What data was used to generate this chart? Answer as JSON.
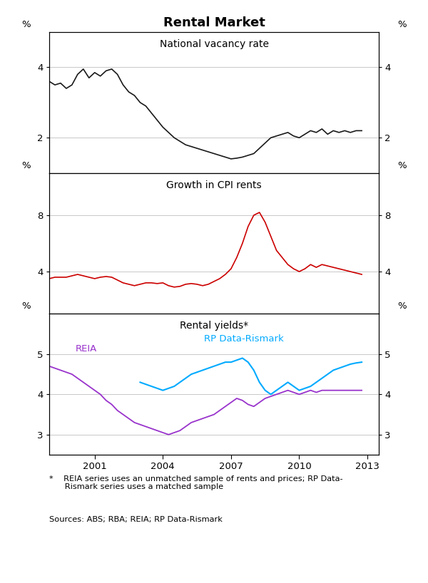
{
  "title": "Rental Market",
  "panel1_title": "National vacancy rate",
  "panel2_title": "Growth in CPI rents",
  "panel3_title": "Rental yields*",
  "footnote_line1": "*    REIA series uses an unmatched sample of rents and prices; RP Data-",
  "footnote_line2": "     Rismark series uses a matched sample",
  "sources": "Sources: ABS; RBA; REIA; RP Data-Rismark",
  "panel1": {
    "color": "#1a1a1a",
    "ylim": [
      1.0,
      5.0
    ],
    "yticks": [
      2,
      4
    ],
    "data": [
      [
        1999.0,
        3.6
      ],
      [
        1999.25,
        3.5
      ],
      [
        1999.5,
        3.55
      ],
      [
        1999.75,
        3.4
      ],
      [
        2000.0,
        3.5
      ],
      [
        2000.25,
        3.8
      ],
      [
        2000.5,
        3.95
      ],
      [
        2000.75,
        3.7
      ],
      [
        2001.0,
        3.85
      ],
      [
        2001.25,
        3.75
      ],
      [
        2001.5,
        3.9
      ],
      [
        2001.75,
        3.95
      ],
      [
        2002.0,
        3.8
      ],
      [
        2002.25,
        3.5
      ],
      [
        2002.5,
        3.3
      ],
      [
        2002.75,
        3.2
      ],
      [
        2003.0,
        3.0
      ],
      [
        2003.25,
        2.9
      ],
      [
        2003.5,
        2.7
      ],
      [
        2003.75,
        2.5
      ],
      [
        2004.0,
        2.3
      ],
      [
        2004.25,
        2.15
      ],
      [
        2004.5,
        2.0
      ],
      [
        2004.75,
        1.9
      ],
      [
        2005.0,
        1.8
      ],
      [
        2005.25,
        1.75
      ],
      [
        2005.5,
        1.7
      ],
      [
        2005.75,
        1.65
      ],
      [
        2006.0,
        1.6
      ],
      [
        2006.25,
        1.55
      ],
      [
        2006.5,
        1.5
      ],
      [
        2006.75,
        1.45
      ],
      [
        2007.0,
        1.4
      ],
      [
        2007.25,
        1.42
      ],
      [
        2007.5,
        1.45
      ],
      [
        2007.75,
        1.5
      ],
      [
        2008.0,
        1.55
      ],
      [
        2008.25,
        1.7
      ],
      [
        2008.5,
        1.85
      ],
      [
        2008.75,
        2.0
      ],
      [
        2009.0,
        2.05
      ],
      [
        2009.25,
        2.1
      ],
      [
        2009.5,
        2.15
      ],
      [
        2009.75,
        2.05
      ],
      [
        2010.0,
        2.0
      ],
      [
        2010.25,
        2.1
      ],
      [
        2010.5,
        2.2
      ],
      [
        2010.75,
        2.15
      ],
      [
        2011.0,
        2.25
      ],
      [
        2011.25,
        2.1
      ],
      [
        2011.5,
        2.2
      ],
      [
        2011.75,
        2.15
      ],
      [
        2012.0,
        2.2
      ],
      [
        2012.25,
        2.15
      ],
      [
        2012.5,
        2.2
      ],
      [
        2012.75,
        2.2
      ]
    ]
  },
  "panel2": {
    "color": "#cc0000",
    "ylim": [
      1.0,
      11.0
    ],
    "yticks": [
      4,
      8
    ],
    "data": [
      [
        1999.0,
        3.5
      ],
      [
        1999.25,
        3.6
      ],
      [
        1999.5,
        3.6
      ],
      [
        1999.75,
        3.6
      ],
      [
        2000.0,
        3.7
      ],
      [
        2000.25,
        3.8
      ],
      [
        2000.5,
        3.7
      ],
      [
        2000.75,
        3.6
      ],
      [
        2001.0,
        3.5
      ],
      [
        2001.25,
        3.6
      ],
      [
        2001.5,
        3.65
      ],
      [
        2001.75,
        3.6
      ],
      [
        2002.0,
        3.4
      ],
      [
        2002.25,
        3.2
      ],
      [
        2002.5,
        3.1
      ],
      [
        2002.75,
        3.0
      ],
      [
        2003.0,
        3.1
      ],
      [
        2003.25,
        3.2
      ],
      [
        2003.5,
        3.2
      ],
      [
        2003.75,
        3.15
      ],
      [
        2004.0,
        3.2
      ],
      [
        2004.25,
        3.0
      ],
      [
        2004.5,
        2.9
      ],
      [
        2004.75,
        2.95
      ],
      [
        2005.0,
        3.1
      ],
      [
        2005.25,
        3.15
      ],
      [
        2005.5,
        3.1
      ],
      [
        2005.75,
        3.0
      ],
      [
        2006.0,
        3.1
      ],
      [
        2006.25,
        3.3
      ],
      [
        2006.5,
        3.5
      ],
      [
        2006.75,
        3.8
      ],
      [
        2007.0,
        4.2
      ],
      [
        2007.25,
        5.0
      ],
      [
        2007.5,
        6.0
      ],
      [
        2007.75,
        7.2
      ],
      [
        2008.0,
        8.0
      ],
      [
        2008.25,
        8.2
      ],
      [
        2008.5,
        7.5
      ],
      [
        2008.75,
        6.5
      ],
      [
        2009.0,
        5.5
      ],
      [
        2009.25,
        5.0
      ],
      [
        2009.5,
        4.5
      ],
      [
        2009.75,
        4.2
      ],
      [
        2010.0,
        4.0
      ],
      [
        2010.25,
        4.2
      ],
      [
        2010.5,
        4.5
      ],
      [
        2010.75,
        4.3
      ],
      [
        2011.0,
        4.5
      ],
      [
        2011.25,
        4.4
      ],
      [
        2011.5,
        4.3
      ],
      [
        2011.75,
        4.2
      ],
      [
        2012.0,
        4.1
      ],
      [
        2012.25,
        4.0
      ],
      [
        2012.5,
        3.9
      ],
      [
        2012.75,
        3.8
      ]
    ]
  },
  "panel3": {
    "color_reia": "#9933cc",
    "color_rp": "#00aaff",
    "ylim": [
      2.5,
      6.0
    ],
    "yticks": [
      3,
      4,
      5
    ],
    "label_reia": "REIA",
    "label_rp": "RP Data-Rismark",
    "data_reia": [
      [
        1999.0,
        4.7
      ],
      [
        1999.25,
        4.65
      ],
      [
        1999.5,
        4.6
      ],
      [
        1999.75,
        4.55
      ],
      [
        2000.0,
        4.5
      ],
      [
        2000.25,
        4.4
      ],
      [
        2000.5,
        4.3
      ],
      [
        2000.75,
        4.2
      ],
      [
        2001.0,
        4.1
      ],
      [
        2001.25,
        4.0
      ],
      [
        2001.5,
        3.85
      ],
      [
        2001.75,
        3.75
      ],
      [
        2002.0,
        3.6
      ],
      [
        2002.25,
        3.5
      ],
      [
        2002.5,
        3.4
      ],
      [
        2002.75,
        3.3
      ],
      [
        2003.0,
        3.25
      ],
      [
        2003.25,
        3.2
      ],
      [
        2003.5,
        3.15
      ],
      [
        2003.75,
        3.1
      ],
      [
        2004.0,
        3.05
      ],
      [
        2004.25,
        3.0
      ],
      [
        2004.5,
        3.05
      ],
      [
        2004.75,
        3.1
      ],
      [
        2005.0,
        3.2
      ],
      [
        2005.25,
        3.3
      ],
      [
        2005.5,
        3.35
      ],
      [
        2005.75,
        3.4
      ],
      [
        2006.0,
        3.45
      ],
      [
        2006.25,
        3.5
      ],
      [
        2006.5,
        3.6
      ],
      [
        2006.75,
        3.7
      ],
      [
        2007.0,
        3.8
      ],
      [
        2007.25,
        3.9
      ],
      [
        2007.5,
        3.85
      ],
      [
        2007.75,
        3.75
      ],
      [
        2008.0,
        3.7
      ],
      [
        2008.25,
        3.8
      ],
      [
        2008.5,
        3.9
      ],
      [
        2008.75,
        3.95
      ],
      [
        2009.0,
        4.0
      ],
      [
        2009.25,
        4.05
      ],
      [
        2009.5,
        4.1
      ],
      [
        2009.75,
        4.05
      ],
      [
        2010.0,
        4.0
      ],
      [
        2010.25,
        4.05
      ],
      [
        2010.5,
        4.1
      ],
      [
        2010.75,
        4.05
      ],
      [
        2011.0,
        4.1
      ],
      [
        2011.25,
        4.1
      ],
      [
        2011.5,
        4.1
      ],
      [
        2011.75,
        4.1
      ],
      [
        2012.0,
        4.1
      ],
      [
        2012.25,
        4.1
      ],
      [
        2012.5,
        4.1
      ],
      [
        2012.75,
        4.1
      ]
    ],
    "data_rp": [
      [
        2003.0,
        4.3
      ],
      [
        2003.25,
        4.25
      ],
      [
        2003.5,
        4.2
      ],
      [
        2003.75,
        4.15
      ],
      [
        2004.0,
        4.1
      ],
      [
        2004.25,
        4.15
      ],
      [
        2004.5,
        4.2
      ],
      [
        2004.75,
        4.3
      ],
      [
        2005.0,
        4.4
      ],
      [
        2005.25,
        4.5
      ],
      [
        2005.5,
        4.55
      ],
      [
        2005.75,
        4.6
      ],
      [
        2006.0,
        4.65
      ],
      [
        2006.25,
        4.7
      ],
      [
        2006.5,
        4.75
      ],
      [
        2006.75,
        4.8
      ],
      [
        2007.0,
        4.8
      ],
      [
        2007.25,
        4.85
      ],
      [
        2007.5,
        4.9
      ],
      [
        2007.75,
        4.8
      ],
      [
        2008.0,
        4.6
      ],
      [
        2008.25,
        4.3
      ],
      [
        2008.5,
        4.1
      ],
      [
        2008.75,
        4.0
      ],
      [
        2009.0,
        4.1
      ],
      [
        2009.25,
        4.2
      ],
      [
        2009.5,
        4.3
      ],
      [
        2009.75,
        4.2
      ],
      [
        2010.0,
        4.1
      ],
      [
        2010.25,
        4.15
      ],
      [
        2010.5,
        4.2
      ],
      [
        2010.75,
        4.3
      ],
      [
        2011.0,
        4.4
      ],
      [
        2011.25,
        4.5
      ],
      [
        2011.5,
        4.6
      ],
      [
        2011.75,
        4.65
      ],
      [
        2012.0,
        4.7
      ],
      [
        2012.25,
        4.75
      ],
      [
        2012.5,
        4.78
      ],
      [
        2012.75,
        4.8
      ]
    ]
  },
  "x_ticks": [
    2001,
    2004,
    2007,
    2010,
    2013
  ],
  "x_lim": [
    1999.0,
    2013.5
  ],
  "grid_color": "#c8c8c8",
  "bg_color": "#ffffff"
}
